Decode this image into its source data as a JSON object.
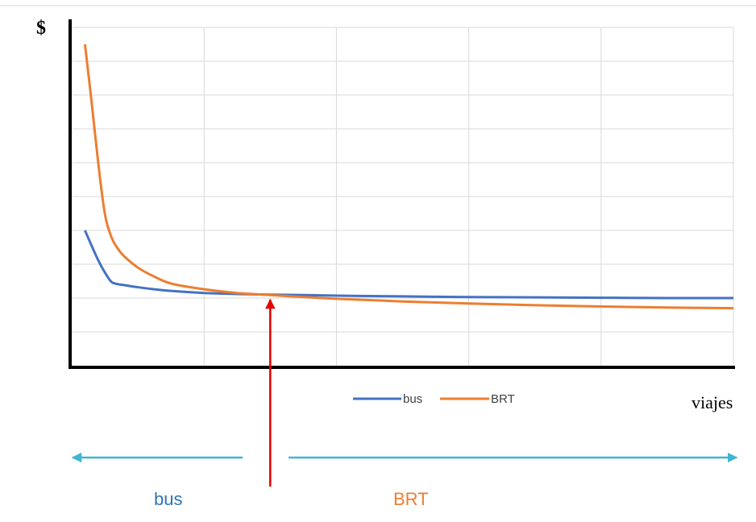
{
  "chart_data": {
    "type": "line",
    "ylabel": "$",
    "xlabel": "viajes",
    "grid": true,
    "legend_position": "bottom-center",
    "xlim": [
      0,
      100
    ],
    "ylim": [
      0,
      100
    ],
    "series": [
      {
        "name": "bus",
        "color": "#4472C4",
        "x": [
          2,
          3,
          4,
          5,
          6,
          7,
          8,
          10,
          12,
          15,
          20,
          25,
          30,
          35,
          40,
          45,
          50,
          60,
          70,
          80,
          90,
          100
        ],
        "y": [
          40,
          35.5,
          31.2,
          27.6,
          24.8,
          24.1,
          23.8,
          23.2,
          22.7,
          22.1,
          21.5,
          21.2,
          21.0,
          20.9,
          20.7,
          20.6,
          20.5,
          20.3,
          20.2,
          20.1,
          20.0,
          20.0
        ]
      },
      {
        "name": "BRT",
        "color": "#ED7D31",
        "x": [
          2,
          3,
          4,
          5,
          6,
          7,
          8,
          10,
          12,
          15,
          20,
          25,
          30,
          35,
          40,
          45,
          50,
          60,
          70,
          80,
          90,
          100
        ],
        "y": [
          95,
          78,
          60,
          45,
          38,
          34.5,
          32.2,
          29,
          26.8,
          24.3,
          22.6,
          21.5,
          20.9,
          20.3,
          19.8,
          19.4,
          19.0,
          18.4,
          17.9,
          17.5,
          17.2,
          17.0
        ]
      }
    ]
  },
  "annotations": {
    "crossover_x": 30,
    "left_region_label": "bus",
    "right_region_label": "BRT",
    "left_region_color": "#2E74B5",
    "right_region_color": "#ED7D31",
    "arrow_color": "#41B5D1",
    "marker_color": "#E30000"
  }
}
